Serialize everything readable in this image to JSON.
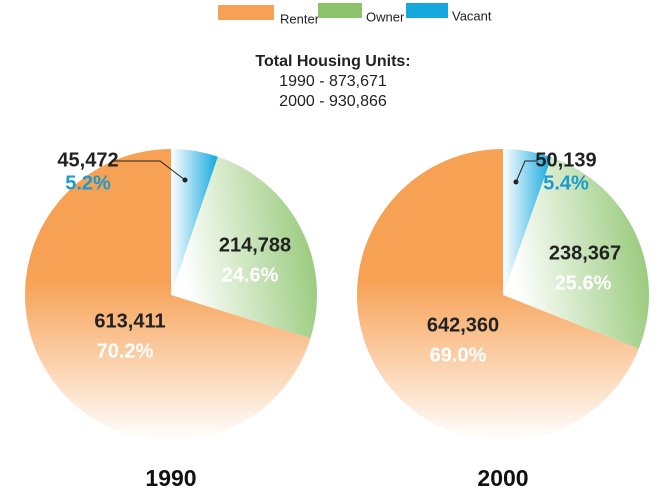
{
  "chart_data": [
    {
      "type": "pie",
      "title": "1990",
      "categories": [
        "Renter",
        "Owner",
        "Vacant"
      ],
      "values": [
        613411,
        214788,
        45472
      ],
      "value_labels": [
        "613,411",
        "214,788",
        "45,472"
      ],
      "shares": [
        70.2,
        24.6,
        5.2
      ],
      "share_labels": [
        "70.2%",
        "24.6%",
        "5.2%"
      ],
      "colors": [
        "#f7a155",
        "#8cc46c",
        "#14a8df"
      ]
    },
    {
      "type": "pie",
      "title": "2000",
      "categories": [
        "Renter",
        "Owner",
        "Vacant"
      ],
      "values": [
        642360,
        238367,
        50139
      ],
      "value_labels": [
        "642,360",
        "238,367",
        "50,139"
      ],
      "shares": [
        69.0,
        25.6,
        5.4
      ],
      "share_labels": [
        "69.0%",
        "25.6%",
        "5.4%"
      ],
      "colors": [
        "#f7a155",
        "#8cc46c",
        "#14a8df"
      ]
    }
  ],
  "annotation": {
    "title": "Total Housing Units:",
    "lines": [
      "1990 - 873,671",
      "2000 - 930,866"
    ]
  }
}
